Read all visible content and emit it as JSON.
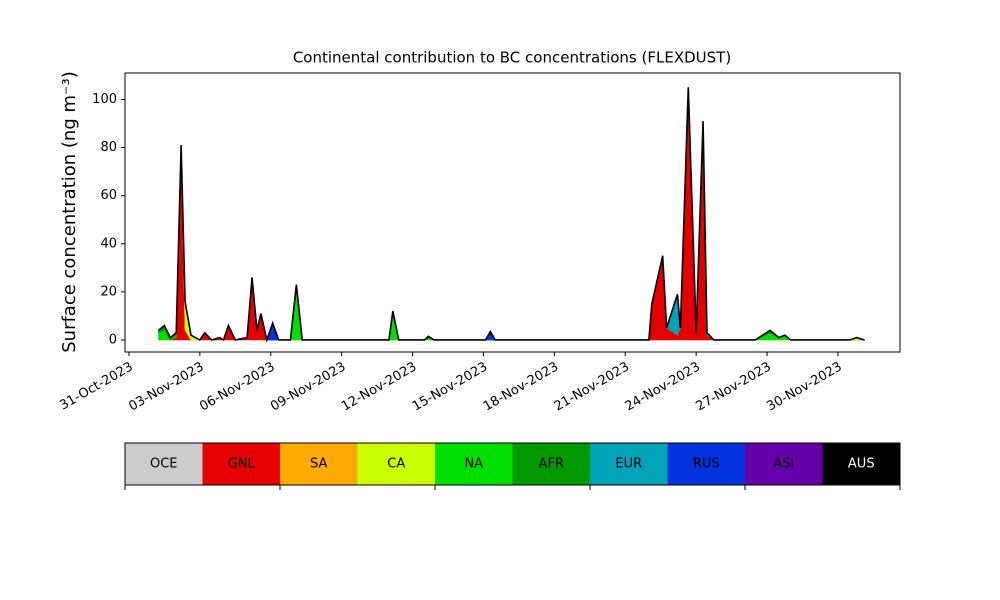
{
  "chart_data": {
    "type": "stackedarea",
    "title": "Continental contribution to BC concentrations (FLEXDUST)",
    "ylabel": "Surface concentration (ng m⁻³)",
    "x": [
      "2023-11-01 06:00",
      "2023-11-01 12:00",
      "2023-11-01 18:00",
      "2023-11-02 00:00",
      "2023-11-02 05:00",
      "2023-11-02 09:00",
      "2023-11-02 15:00",
      "2023-11-03 00:00",
      "2023-11-03 05:00",
      "2023-11-03 12:00",
      "2023-11-03 20:00",
      "2023-11-04 00:00",
      "2023-11-04 05:00",
      "2023-11-04 12:00",
      "2023-11-05 00:00",
      "2023-11-05 05:00",
      "2023-11-05 10:00",
      "2023-11-05 14:00",
      "2023-11-05 20:00",
      "2023-11-06 02:00",
      "2023-11-06 08:00",
      "2023-11-06 20:00",
      "2023-11-07 02:00",
      "2023-11-07 08:00",
      "2023-11-11 00:00",
      "2023-11-11 04:00",
      "2023-11-11 10:00",
      "2023-11-12 12:00",
      "2023-11-12 16:00",
      "2023-11-12 22:00",
      "2023-11-15 02:00",
      "2023-11-15 07:00",
      "2023-11-15 12:00",
      "2023-11-22 00:00",
      "2023-11-22 03:00",
      "2023-11-22 14:00",
      "2023-11-22 18:00",
      "2023-11-23 05:00",
      "2023-11-23 08:00",
      "2023-11-23 16:00",
      "2023-11-24 00:00",
      "2023-11-24 07:00",
      "2023-11-24 11:00",
      "2023-11-24 18:00",
      "2023-11-26 12:00",
      "2023-11-27 03:00",
      "2023-11-27 12:00",
      "2023-11-27 18:00",
      "2023-11-28 00:00",
      "2023-11-30 12:00",
      "2023-11-30 19:00",
      "2023-12-01 03:00"
    ],
    "series": [
      {
        "name": "OCE",
        "color": "#cccccc",
        "values": [
          0,
          0,
          0,
          0,
          0,
          0,
          0,
          0,
          0,
          0,
          0,
          0,
          0,
          0,
          0,
          0,
          0,
          0,
          0,
          0,
          0,
          0,
          0,
          0,
          0,
          0,
          0,
          0,
          0,
          0,
          0,
          0,
          0,
          0,
          0,
          0,
          0,
          0,
          0,
          0,
          0,
          0,
          0,
          0,
          0,
          0,
          0,
          0,
          0,
          0,
          0,
          0
        ]
      },
      {
        "name": "GNL",
        "color": "#e60000",
        "values": [
          0,
          0,
          0,
          1,
          76,
          4,
          0,
          0,
          3,
          0,
          1,
          0,
          6,
          0,
          1,
          25,
          4,
          10,
          0,
          0,
          0,
          0,
          0,
          0,
          0,
          0,
          0,
          0,
          0,
          0,
          0,
          0,
          0,
          0,
          15,
          35,
          5,
          2,
          5,
          103,
          3,
          85,
          2,
          0,
          0,
          0,
          0,
          0,
          0,
          0,
          0,
          0
        ]
      },
      {
        "name": "SA",
        "color": "#ffaa00",
        "values": [
          0,
          0,
          0,
          0,
          0,
          0,
          0,
          0,
          0,
          0,
          0,
          0,
          0,
          0,
          0,
          0,
          0,
          0,
          0,
          0,
          0,
          0,
          0,
          0,
          0,
          0,
          0,
          0,
          0,
          0,
          0,
          0,
          0,
          0,
          0,
          0,
          0,
          0,
          0,
          0,
          0,
          0,
          0,
          0,
          0,
          0,
          0,
          0,
          0,
          0,
          0,
          0
        ]
      },
      {
        "name": "CA",
        "color": "#ccff00",
        "values": [
          0,
          0,
          0,
          0,
          3,
          12,
          2,
          0,
          0,
          0,
          0,
          0,
          0,
          0,
          0,
          0,
          0,
          0,
          0,
          0,
          0,
          0,
          0,
          0,
          0,
          0,
          0,
          0,
          0,
          0,
          0,
          0,
          0,
          0,
          0,
          0,
          0,
          0,
          0,
          0,
          0,
          0,
          0,
          0,
          0,
          0,
          0,
          0,
          0,
          0,
          1,
          0
        ]
      },
      {
        "name": "NA",
        "color": "#00e000",
        "values": [
          3,
          4,
          0,
          1,
          0,
          0,
          0,
          0,
          0,
          0,
          0,
          0,
          0,
          0,
          0,
          0,
          0,
          0,
          0,
          0,
          0,
          0,
          20,
          0,
          0,
          10,
          0,
          0,
          1,
          0,
          0,
          0,
          0,
          0,
          0,
          0,
          0,
          0,
          0,
          0,
          0,
          0,
          0,
          0,
          0,
          3,
          1,
          2,
          0,
          0,
          0,
          0
        ]
      },
      {
        "name": "AFR",
        "color": "#009900",
        "values": [
          1,
          2,
          1,
          1,
          0,
          0,
          0,
          0,
          0,
          0,
          0,
          0,
          0,
          0,
          0,
          0,
          0,
          0,
          0,
          0,
          0,
          0,
          2,
          0,
          0,
          2,
          0,
          0,
          0,
          0,
          0,
          0,
          0,
          0,
          0,
          0,
          0,
          0,
          0,
          0,
          0,
          0,
          0,
          0,
          0,
          1,
          0,
          0,
          0,
          0,
          0,
          0
        ]
      },
      {
        "name": "EUR",
        "color": "#00a3b8",
        "values": [
          0,
          0,
          0,
          0,
          0,
          0,
          0,
          0,
          0,
          0,
          0,
          0,
          0,
          0,
          0,
          0,
          0,
          0,
          0,
          0,
          0,
          0,
          0,
          0,
          0,
          0,
          0,
          0,
          0,
          0,
          0,
          0,
          0,
          0,
          0,
          0,
          0,
          16,
          0,
          1,
          0,
          5,
          1,
          0,
          0,
          0,
          0,
          0,
          0,
          0,
          0,
          0
        ]
      },
      {
        "name": "RUS",
        "color": "#0033dd",
        "values": [
          0,
          0,
          0,
          0,
          2,
          0,
          0,
          0,
          0,
          0,
          0,
          0,
          0,
          0,
          0,
          1,
          0,
          1,
          0,
          7,
          0,
          0,
          1,
          0,
          0,
          0,
          0,
          0,
          0.5,
          0,
          0,
          3.5,
          0,
          0,
          0,
          0,
          0,
          1,
          0,
          1,
          0,
          1,
          0,
          0,
          0,
          0,
          0,
          0,
          0,
          0,
          0,
          0
        ]
      },
      {
        "name": "ASI",
        "color": "#6600aa",
        "values": [
          0,
          0,
          0,
          0,
          0,
          0,
          0,
          0,
          0,
          0,
          0,
          0,
          0,
          0,
          0,
          0,
          0,
          0,
          0,
          0,
          0,
          0,
          0,
          0,
          0,
          0,
          0,
          0,
          0,
          0,
          0,
          0,
          0,
          0,
          0,
          0,
          0,
          0,
          0,
          0,
          0,
          0,
          0,
          0,
          0,
          0,
          0,
          0,
          0,
          0,
          0,
          0
        ]
      },
      {
        "name": "AUS",
        "color": "#000000",
        "values": [
          0,
          0,
          0,
          0,
          0,
          0,
          0,
          0,
          0,
          0,
          0,
          0,
          0,
          0,
          0,
          0,
          0,
          0,
          0,
          0,
          0,
          0,
          0,
          0,
          0,
          0,
          0,
          0,
          0,
          0,
          0,
          0,
          0,
          0,
          0,
          0,
          0,
          0,
          0,
          0,
          0,
          0,
          0,
          0,
          0,
          0,
          0,
          0,
          0,
          0,
          0,
          0
        ]
      }
    ],
    "xlim": [
      "2023-10-30 20:00",
      "2023-12-02 15:00"
    ],
    "xticks": [
      {
        "value": "2023-10-31",
        "label": "31-Oct-2023"
      },
      {
        "value": "2023-11-03",
        "label": "03-Nov-2023"
      },
      {
        "value": "2023-11-06",
        "label": "06-Nov-2023"
      },
      {
        "value": "2023-11-09",
        "label": "09-Nov-2023"
      },
      {
        "value": "2023-11-12",
        "label": "12-Nov-2023"
      },
      {
        "value": "2023-11-15",
        "label": "15-Nov-2023"
      },
      {
        "value": "2023-11-18",
        "label": "18-Nov-2023"
      },
      {
        "value": "2023-11-21",
        "label": "21-Nov-2023"
      },
      {
        "value": "2023-11-24",
        "label": "24-Nov-2023"
      },
      {
        "value": "2023-11-27",
        "label": "27-Nov-2023"
      },
      {
        "value": "2023-11-30",
        "label": "30-Nov-2023"
      }
    ],
    "ylim": [
      -5,
      111
    ],
    "yticks": [
      0,
      20,
      40,
      60,
      80,
      100
    ]
  }
}
